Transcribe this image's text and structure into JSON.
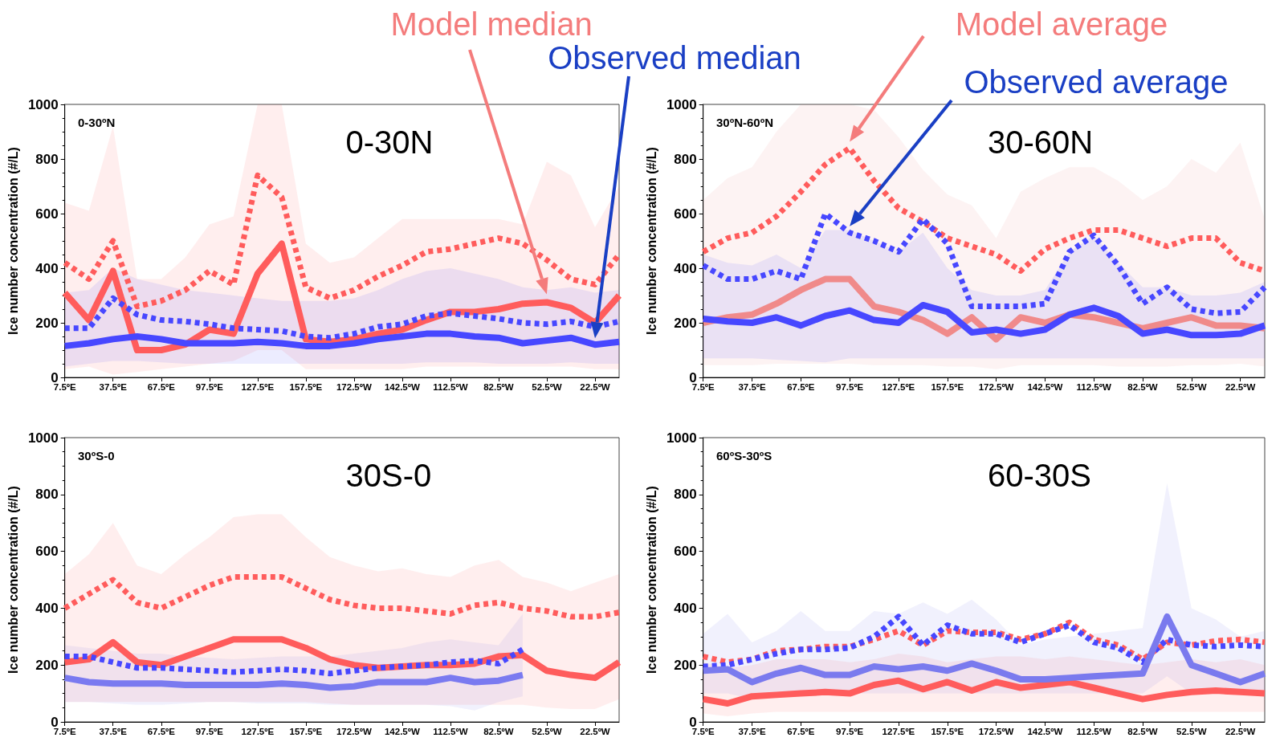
{
  "chart_data": [
    {
      "type": "line",
      "title": "0-30N",
      "subtitle": "0-30ºN",
      "ylabel": "Ice number concentration (#/L)",
      "categories": [
        "7.5ºE",
        null,
        "37.5ºE",
        null,
        "67.5ºE",
        null,
        "97.5ºE",
        null,
        "127.5ºE",
        null,
        "157.5ºE",
        null,
        "172.5ºW",
        null,
        "142.5ºW",
        null,
        "112.5ºW",
        null,
        "82.5ºW",
        null,
        "52.5ºW",
        null,
        "22.5ºW",
        null
      ],
      "ylim": [
        0,
        1000
      ],
      "yticks": [
        0,
        200,
        400,
        600,
        800,
        1000
      ],
      "grid": false,
      "marker": "none",
      "annotations": [
        "Model median",
        "Observed median"
      ],
      "series": [
        {
          "color": "#ff5c5c",
          "line_style": "solid",
          "values": [
            310,
            210,
            390,
            100,
            100,
            120,
            175,
            160,
            380,
            490,
            140,
            130,
            140,
            160,
            175,
            210,
            240,
            240,
            250,
            270,
            275,
            255,
            200,
            300
          ],
          "lower": [
            30,
            40,
            10,
            20,
            30,
            40,
            50,
            60,
            100,
            100,
            30,
            30,
            30,
            30,
            30,
            40,
            40,
            40,
            40,
            40,
            40,
            40,
            30,
            30
          ],
          "upper": [
            640,
            610,
            920,
            360,
            360,
            440,
            560,
            590,
            1000,
            1000,
            490,
            420,
            440,
            510,
            580,
            580,
            580,
            580,
            580,
            560,
            790,
            740,
            550,
            700
          ]
        },
        {
          "color": "#ff5c5c",
          "line_style": "dotted",
          "values": [
            420,
            360,
            500,
            260,
            280,
            320,
            390,
            340,
            740,
            660,
            330,
            290,
            320,
            370,
            410,
            460,
            470,
            490,
            510,
            490,
            430,
            360,
            340,
            450
          ]
        },
        {
          "color": "#4747ff",
          "line_style": "dotted",
          "values": [
            180,
            180,
            290,
            230,
            210,
            205,
            195,
            180,
            175,
            170,
            150,
            145,
            160,
            185,
            195,
            225,
            235,
            225,
            215,
            200,
            195,
            205,
            185,
            205
          ]
        },
        {
          "color": "#4747ff",
          "line_style": "solid",
          "values": [
            115,
            125,
            140,
            150,
            140,
            125,
            125,
            125,
            130,
            125,
            115,
            115,
            125,
            140,
            150,
            160,
            160,
            150,
            145,
            125,
            135,
            145,
            120,
            130
          ],
          "lower": [
            40,
            50,
            60,
            60,
            55,
            50,
            50,
            50,
            50,
            50,
            50,
            50,
            50,
            50,
            50,
            55,
            55,
            55,
            50,
            50,
            50,
            55,
            50,
            50
          ],
          "upper": [
            310,
            320,
            400,
            360,
            340,
            320,
            310,
            300,
            290,
            280,
            280,
            280,
            290,
            320,
            360,
            390,
            400,
            380,
            360,
            330,
            320,
            330,
            310,
            320
          ]
        }
      ]
    },
    {
      "type": "line",
      "title": "30-60N",
      "subtitle": "30ºN-60ºN",
      "ylabel": "Ice number concentration (#/L)",
      "categories": [
        "7.5ºE",
        null,
        "37.5ºE",
        null,
        "67.5ºE",
        null,
        "97.5ºE",
        null,
        "127.5ºE",
        null,
        "157.5ºE",
        null,
        "172.5ºW",
        null,
        "142.5ºW",
        null,
        "112.5ºW",
        null,
        "82.5ºW",
        null,
        "52.5ºW",
        null,
        "22.5ºW",
        null
      ],
      "ylim": [
        0,
        1000
      ],
      "yticks": [
        0,
        200,
        400,
        600,
        800,
        1000
      ],
      "grid": false,
      "marker": "none",
      "annotations": [
        "Model average",
        "Observed average"
      ],
      "series": [
        {
          "color": "#f08a8a",
          "line_style": "solid",
          "values": [
            200,
            220,
            230,
            270,
            320,
            360,
            360,
            260,
            240,
            210,
            160,
            220,
            140,
            220,
            200,
            230,
            220,
            200,
            180,
            200,
            220,
            190,
            190,
            180
          ],
          "lower": [
            45,
            45,
            45,
            50,
            50,
            50,
            50,
            45,
            45,
            45,
            40,
            40,
            30,
            45,
            45,
            45,
            45,
            40,
            40,
            40,
            45,
            45,
            50,
            40
          ],
          "upper": [
            650,
            730,
            770,
            900,
            1000,
            1000,
            1000,
            980,
            880,
            760,
            670,
            630,
            510,
            680,
            730,
            770,
            770,
            720,
            650,
            700,
            800,
            750,
            860,
            580
          ]
        },
        {
          "color": "#ff5c5c",
          "line_style": "dotted",
          "values": [
            460,
            510,
            530,
            590,
            680,
            780,
            840,
            720,
            620,
            570,
            510,
            480,
            450,
            390,
            470,
            510,
            540,
            540,
            510,
            480,
            510,
            510,
            420,
            390
          ]
        },
        {
          "color": "#4747ff",
          "line_style": "dotted",
          "values": [
            410,
            360,
            360,
            390,
            360,
            600,
            530,
            500,
            460,
            580,
            490,
            260,
            260,
            260,
            270,
            460,
            520,
            410,
            270,
            330,
            250,
            235,
            240,
            330
          ]
        },
        {
          "color": "#4747ff",
          "line_style": "solid",
          "values": [
            215,
            205,
            200,
            220,
            190,
            225,
            245,
            210,
            200,
            265,
            240,
            165,
            175,
            160,
            175,
            230,
            255,
            225,
            160,
            175,
            155,
            155,
            160,
            190
          ],
          "lower": [
            70,
            70,
            70,
            65,
            60,
            55,
            70,
            70,
            70,
            70,
            70,
            70,
            70,
            70,
            70,
            70,
            70,
            70,
            70,
            70,
            70,
            70,
            70,
            70
          ],
          "upper": [
            450,
            420,
            410,
            450,
            400,
            540,
            540,
            500,
            460,
            530,
            400,
            320,
            300,
            300,
            320,
            460,
            520,
            420,
            330,
            330,
            300,
            300,
            310,
            350
          ]
        }
      ]
    },
    {
      "type": "line",
      "title": "30S-0",
      "subtitle": "30ºS-0",
      "ylabel": "Ice number concentration (#/L)",
      "categories": [
        "7.5ºE",
        null,
        "37.5ºE",
        null,
        "67.5ºE",
        null,
        "97.5ºE",
        null,
        "127.5ºE",
        null,
        "157.5ºE",
        null,
        "172.5ºW",
        null,
        "142.5ºW",
        null,
        "112.5ºW",
        null,
        "82.5ºW",
        null,
        "52.5ºW",
        null,
        "22.5ºW",
        null
      ],
      "ylim": [
        0,
        1000
      ],
      "yticks": [
        0,
        200,
        400,
        600,
        800,
        1000
      ],
      "grid": false,
      "marker": "none",
      "series": [
        {
          "color": "#ff5c5c",
          "line_style": "solid",
          "values": [
            210,
            220,
            280,
            210,
            200,
            230,
            260,
            290,
            290,
            290,
            260,
            220,
            200,
            190,
            195,
            200,
            200,
            205,
            230,
            235,
            180,
            165,
            155,
            210
          ],
          "lower": [
            70,
            70,
            70,
            70,
            70,
            70,
            70,
            70,
            70,
            70,
            70,
            65,
            60,
            60,
            60,
            60,
            60,
            60,
            60,
            60,
            50,
            45,
            45,
            80
          ],
          "upper": [
            520,
            590,
            700,
            550,
            520,
            590,
            650,
            720,
            730,
            730,
            650,
            580,
            550,
            530,
            540,
            520,
            510,
            550,
            570,
            510,
            490,
            460,
            490,
            520
          ]
        },
        {
          "color": "#ff5c5c",
          "line_style": "dotted",
          "values": [
            400,
            450,
            500,
            420,
            400,
            440,
            480,
            510,
            510,
            510,
            470,
            430,
            410,
            400,
            400,
            390,
            380,
            410,
            420,
            400,
            390,
            370,
            370,
            385
          ]
        },
        {
          "color": "#4747ff",
          "line_style": "dotted",
          "values": [
            230,
            230,
            210,
            190,
            190,
            185,
            180,
            175,
            180,
            185,
            180,
            170,
            180,
            190,
            195,
            200,
            210,
            215,
            205,
            255,
            null,
            null,
            null,
            null
          ]
        },
        {
          "color": "#7a7af0",
          "line_style": "solid",
          "values": [
            155,
            140,
            135,
            135,
            135,
            130,
            130,
            130,
            130,
            135,
            130,
            120,
            125,
            140,
            140,
            140,
            155,
            140,
            145,
            165,
            null,
            null,
            null,
            null
          ],
          "lower": [
            70,
            70,
            65,
            60,
            60,
            65,
            70,
            70,
            65,
            65,
            65,
            60,
            60,
            60,
            60,
            60,
            55,
            40,
            70,
            90,
            null,
            null,
            null,
            null
          ],
          "upper": [
            270,
            260,
            250,
            240,
            240,
            230,
            225,
            220,
            225,
            230,
            230,
            230,
            240,
            250,
            260,
            280,
            290,
            280,
            270,
            380,
            null,
            null,
            null,
            null
          ]
        }
      ]
    },
    {
      "type": "line",
      "title": "60-30S",
      "subtitle": "60ºS-30ºS",
      "ylabel": "Ice number concentration (#/L)",
      "categories": [
        "7.5ºE",
        null,
        "37.5ºE",
        null,
        "67.5ºE",
        null,
        "97.5ºE",
        null,
        "127.5ºE",
        null,
        "157.5ºE",
        null,
        "172.5ºW",
        null,
        "142.5ºW",
        null,
        "112.5ºW",
        null,
        "82.5ºW",
        null,
        "52.5ºW",
        null,
        "22.5ºW",
        null
      ],
      "ylim": [
        0,
        1000
      ],
      "yticks": [
        0,
        200,
        400,
        600,
        800,
        1000
      ],
      "grid": false,
      "marker": "none",
      "series": [
        {
          "color": "#ff5c5c",
          "line_style": "solid",
          "values": [
            80,
            65,
            90,
            95,
            100,
            105,
            100,
            130,
            145,
            115,
            140,
            110,
            140,
            120,
            130,
            140,
            120,
            100,
            80,
            95,
            105,
            110,
            105,
            100
          ],
          "lower": [
            30,
            20,
            30,
            35,
            35,
            35,
            35,
            35,
            35,
            35,
            35,
            35,
            35,
            35,
            35,
            35,
            35,
            35,
            35,
            35,
            35,
            35,
            35,
            35
          ],
          "upper": [
            210,
            190,
            200,
            220,
            220,
            220,
            210,
            220,
            240,
            230,
            210,
            220,
            230,
            230,
            220,
            230,
            220,
            210,
            200,
            210,
            220,
            210,
            220,
            200
          ]
        },
        {
          "color": "#ff5c5c",
          "line_style": "dotted",
          "values": [
            230,
            210,
            220,
            250,
            255,
            265,
            265,
            290,
            320,
            270,
            320,
            315,
            315,
            290,
            310,
            350,
            290,
            270,
            220,
            280,
            270,
            285,
            290,
            280
          ]
        },
        {
          "color": "#4747ff",
          "line_style": "dotted",
          "values": [
            195,
            200,
            220,
            240,
            255,
            255,
            260,
            300,
            370,
            270,
            340,
            310,
            310,
            280,
            310,
            340,
            280,
            260,
            210,
            290,
            270,
            265,
            270,
            265
          ]
        },
        {
          "color": "#7a7aee",
          "line_style": "solid",
          "values": [
            180,
            185,
            140,
            170,
            190,
            165,
            165,
            195,
            185,
            195,
            180,
            205,
            180,
            150,
            150,
            155,
            160,
            165,
            170,
            370,
            200,
            170,
            140,
            170
          ],
          "lower": [
            100,
            100,
            80,
            90,
            100,
            100,
            100,
            100,
            100,
            100,
            100,
            100,
            100,
            100,
            100,
            100,
            100,
            100,
            100,
            160,
            100,
            100,
            100,
            100
          ],
          "upper": [
            310,
            380,
            280,
            320,
            390,
            320,
            320,
            390,
            380,
            420,
            380,
            430,
            360,
            270,
            290,
            300,
            310,
            320,
            330,
            840,
            400,
            360,
            300,
            320
          ]
        }
      ]
    }
  ]
}
